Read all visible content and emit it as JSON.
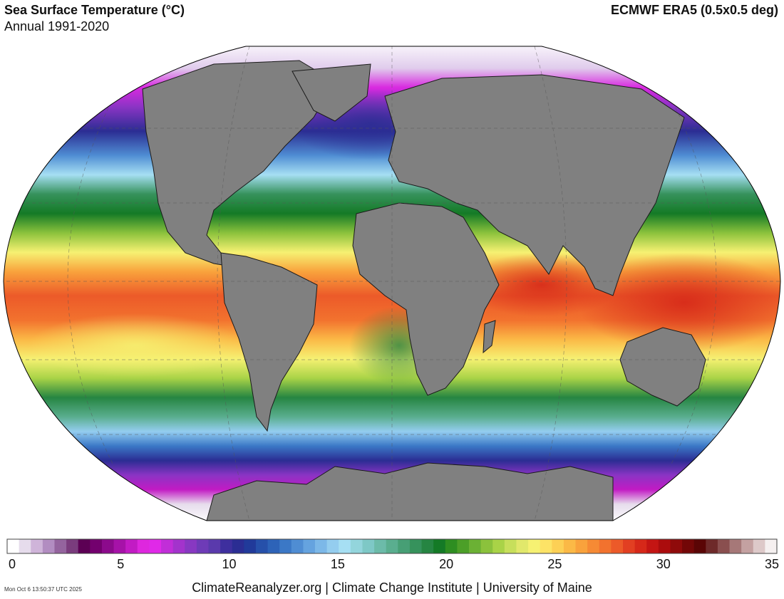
{
  "header": {
    "title": "Sea Surface Temperature (°C)",
    "subtitle": "Annual 1991-2020",
    "source": "ECMWF ERA5 (0.5x0.5 deg)"
  },
  "map": {
    "projection": "Robinson",
    "land_color": "#808080",
    "no_data_color": "#ffffff"
  },
  "colorbar": {
    "min": 0,
    "max": 35,
    "ticks": [
      "0",
      "5",
      "10",
      "15",
      "20",
      "25",
      "30",
      "35"
    ],
    "colors": [
      "#ffffff",
      "#e6dcec",
      "#cfb4d9",
      "#b28dc1",
      "#94649e",
      "#7a3c7d",
      "#5c0054",
      "#73006e",
      "#8c0a8c",
      "#a612a8",
      "#c21bc4",
      "#de27de",
      "#e029e8",
      "#c12ed8",
      "#a333cc",
      "#8838c2",
      "#6e3bb7",
      "#5a3aac",
      "#3e2f9e",
      "#2b2d93",
      "#213a9a",
      "#2650aa",
      "#2d63b8",
      "#3b78c6",
      "#4f8dd3",
      "#65a3df",
      "#7cb8e8",
      "#94cdef",
      "#a6dff3",
      "#93d5dc",
      "#7ec8c6",
      "#6cbba9",
      "#5aae8f",
      "#479f75",
      "#36925c",
      "#268542",
      "#147a26",
      "#2e8e21",
      "#4c9f28",
      "#6bb134",
      "#8bc23c",
      "#a9d347",
      "#c7df5b",
      "#e1e86b",
      "#f6f172",
      "#fde366",
      "#fdd055",
      "#fbb946",
      "#f9a23c",
      "#f68a34",
      "#f2722e",
      "#ec5a29",
      "#e23f22",
      "#d62819",
      "#c41513",
      "#ab0c0d",
      "#8f0a0a",
      "#730707",
      "#5a0505",
      "#6e2a2a",
      "#8a4f4f",
      "#a67878",
      "#c4a1a1",
      "#ddc9c9",
      "#f5f0f0"
    ]
  },
  "footer": {
    "credits": "ClimateReanalyzer.org | Climate Change Institute | University of Maine",
    "timestamp": "Mon Oct  6 13:50:37 UTC 2025"
  }
}
